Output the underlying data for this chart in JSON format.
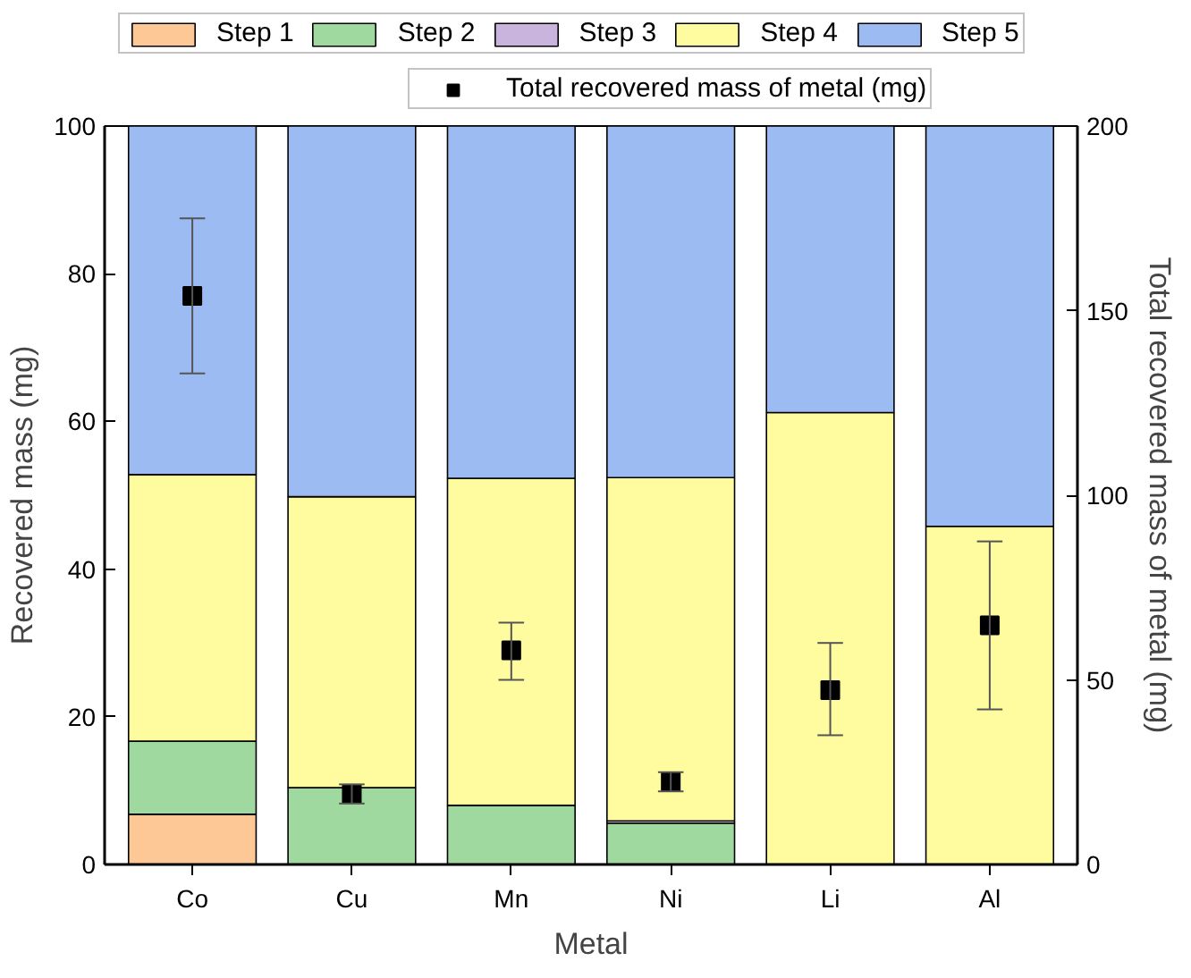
{
  "chart_data": {
    "type": "bar",
    "stacked": true,
    "xlabel": "Metal",
    "ylabel": "Recovered mass (mg)",
    "y2label": "Total recovered mass of metal (mg)",
    "categories": [
      "Co",
      "Cu",
      "Mn",
      "Ni",
      "Li",
      "Al"
    ],
    "series": [
      {
        "name": "Step 1",
        "color": "#fdc896",
        "values": [
          6.8,
          0,
          0,
          0,
          0,
          0
        ]
      },
      {
        "name": "Step 2",
        "color": "#9fd99f",
        "values": [
          9.9,
          10.4,
          8.0,
          5.6,
          0,
          0
        ]
      },
      {
        "name": "Step 3",
        "color": "#c8b4dc",
        "values": [
          0,
          0,
          0,
          0.3,
          0,
          0
        ]
      },
      {
        "name": "Step 4",
        "color": "#fffb9f",
        "values": [
          36.1,
          39.4,
          44.3,
          46.5,
          61.2,
          45.8
        ]
      },
      {
        "name": "Step 5",
        "color": "#9cbbf2",
        "values": [
          47.2,
          50.2,
          47.7,
          47.6,
          38.8,
          54.2
        ]
      },
      {
        "name": "Total recovered mass of metal (mg)",
        "type": "scatter",
        "axis": "y2",
        "marker": "square",
        "color": "#000000",
        "x": [
          "Co",
          "Cu",
          "Mn",
          "Ni",
          "Li",
          "Al"
        ],
        "values": [
          154,
          19.1,
          58,
          22.4,
          47.2,
          64.8
        ],
        "errors": [
          [
            133,
            175
          ],
          2.6,
          [
            50,
            65.5
          ],
          2.6,
          [
            35,
            60
          ],
          [
            42,
            87.5
          ]
        ]
      }
    ],
    "ylim": [
      0,
      100
    ],
    "yticks": [
      0,
      20,
      40,
      60,
      80,
      100
    ],
    "y2lim": [
      0,
      200
    ],
    "y2ticks": [
      0,
      50,
      100,
      150,
      200
    ],
    "legend": "top",
    "grid": false
  }
}
